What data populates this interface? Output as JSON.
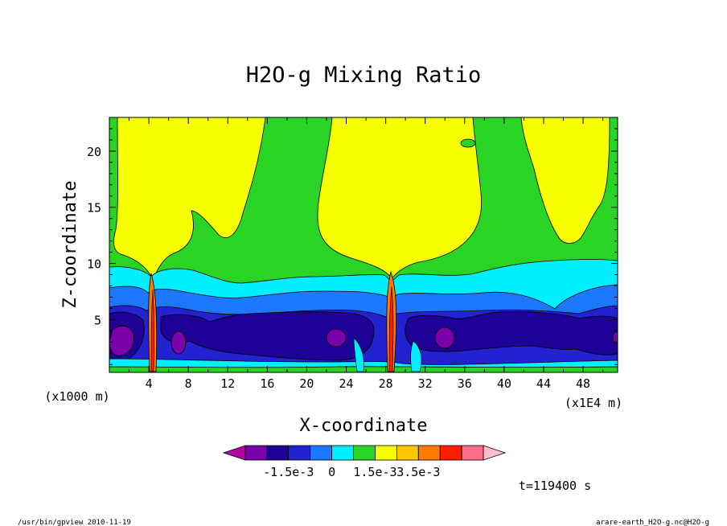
{
  "chart_data": {
    "type": "contour",
    "title": "H2O-g Mixing Ratio",
    "xlabel": "X-coordinate",
    "ylabel": "Z-coordinate",
    "x_scale_label": "(x1E4 m)",
    "y_scale_label": "(x1000 m)",
    "x_ticks": [
      "4",
      "8",
      "12",
      "16",
      "20",
      "24",
      "28",
      "32",
      "36",
      "40",
      "44",
      "48"
    ],
    "x_tick_values": [
      4,
      8,
      12,
      16,
      20,
      24,
      28,
      32,
      36,
      40,
      44,
      48
    ],
    "y_ticks": [
      "5",
      "10",
      "15",
      "20"
    ],
    "y_tick_values": [
      5,
      10,
      15,
      20
    ],
    "xlim": [
      0,
      51.5
    ],
    "ylim": [
      0.3,
      23
    ],
    "grid": false,
    "colorbar": {
      "labels": [
        "-1.5e-3",
        "0",
        "1.5e-3",
        "3.5e-3"
      ],
      "label_positions": [
        2,
        4,
        6,
        8
      ],
      "colors": [
        "#b2009e",
        "#7a00aa",
        "#1f0096",
        "#2222d0",
        "#1e78ff",
        "#00eeff",
        "#2ad424",
        "#f6ff00",
        "#ffc800",
        "#ff7a00",
        "#ff1e00",
        "#ff6e88",
        "#ffc0cc"
      ]
    },
    "annotation": "t=119400 s"
  },
  "footer": {
    "left": "/usr/bin/gpview   2010-11-19",
    "right": "arare-earth_H2O-g.nc@H2O-g"
  }
}
